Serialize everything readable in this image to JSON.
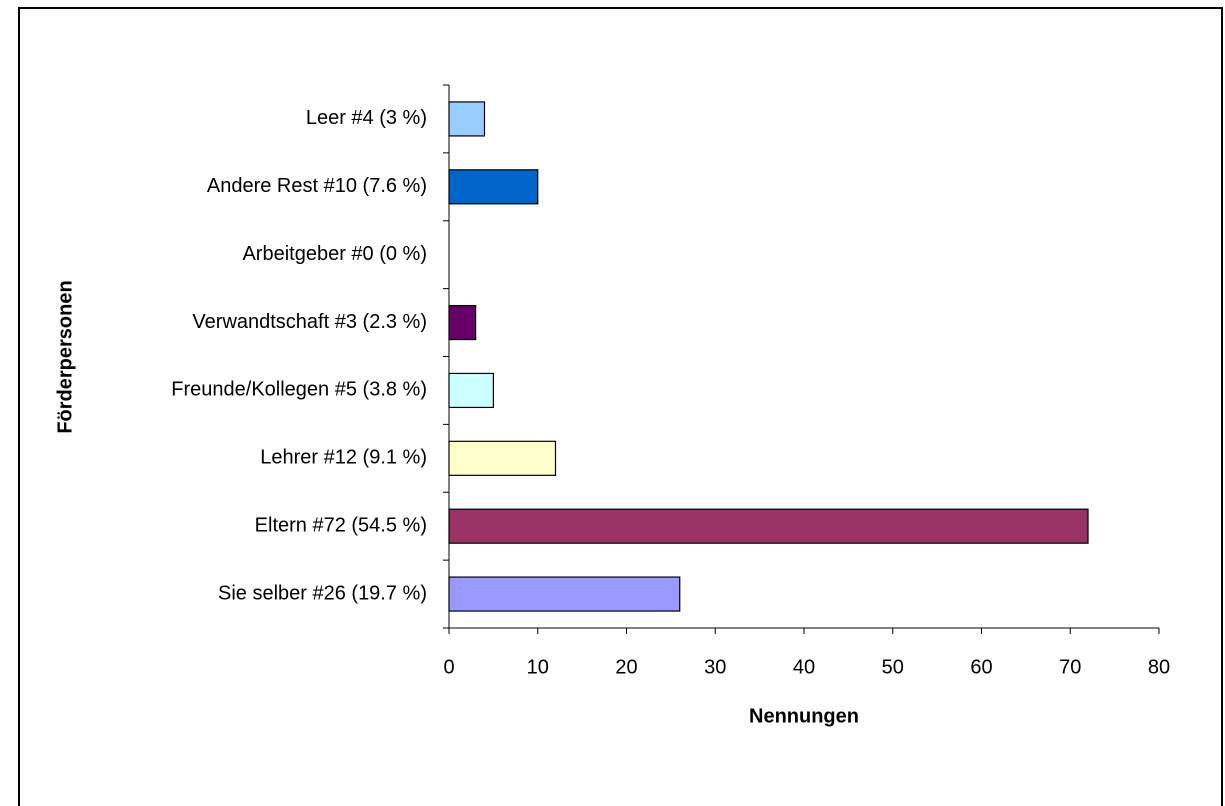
{
  "chart_data": {
    "type": "bar",
    "orientation": "horizontal",
    "x_label": "Nennungen",
    "y_label": "Förderpersonen",
    "categories": [
      "Leer #4 (3 %)",
      "Andere Rest #10 (7.6 %)",
      "Arbeitgeber #0 (0 %)",
      "Verwandtschaft #3 (2.3 %)",
      "Freunde/Kollegen #5 (3.8 %)",
      "Lehrer #12 (9.1 %)",
      "Eltern #72 (54.5 %)",
      "Sie selber #26 (19.7 %)"
    ],
    "values": [
      4,
      10,
      0,
      3,
      5,
      12,
      72,
      26
    ],
    "colors": [
      "#99ccff",
      "#0066cc",
      "#ff8080",
      "#660066",
      "#ccffff",
      "#ffffcc",
      "#993366",
      "#9999ff"
    ],
    "xlim": [
      0,
      80
    ],
    "xticks": [
      0,
      10,
      20,
      30,
      40,
      50,
      60,
      70,
      80
    ],
    "grid": false
  }
}
